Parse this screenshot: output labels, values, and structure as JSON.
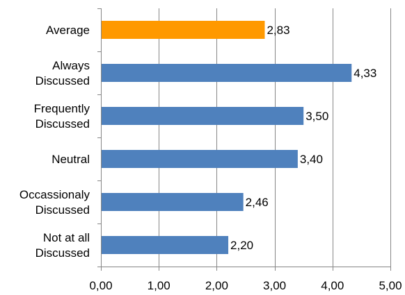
{
  "chart_data": {
    "type": "bar",
    "orientation": "horizontal",
    "categories": [
      [
        "Average"
      ],
      [
        "Always",
        "Discussed"
      ],
      [
        "Frequently",
        "Discussed"
      ],
      [
        "Neutral"
      ],
      [
        "Occassionaly",
        "Discussed"
      ],
      [
        "Not at all",
        "Discussed"
      ]
    ],
    "values": [
      2.83,
      4.33,
      3.5,
      3.4,
      2.46,
      2.2
    ],
    "value_labels": [
      "2,83",
      "4,33",
      "3,50",
      "3,40",
      "2,46",
      "2,20"
    ],
    "bar_colors": [
      "#FF9900",
      "#4F81BD",
      "#4F81BD",
      "#4F81BD",
      "#4F81BD",
      "#4F81BD"
    ],
    "xlim": [
      0,
      5
    ],
    "x_ticks": [
      0,
      1,
      2,
      3,
      4,
      5
    ],
    "x_tick_labels": [
      "0,00",
      "1,00",
      "2,00",
      "3,00",
      "4,00",
      "5,00"
    ],
    "grid": true,
    "title": "",
    "xlabel": "",
    "ylabel": ""
  }
}
